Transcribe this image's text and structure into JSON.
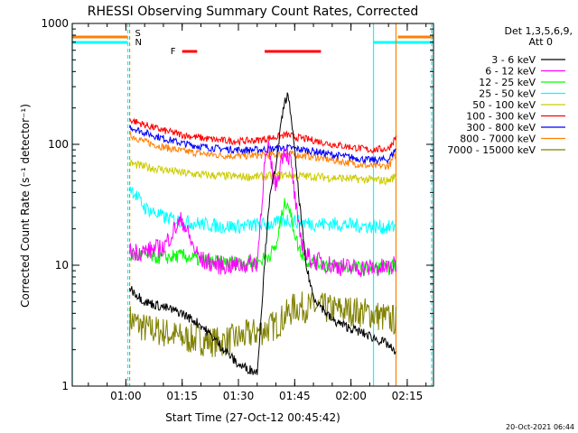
{
  "chart_data": {
    "type": "line",
    "title": "RHESSI Observing Summary Count Rates, Corrected",
    "xlabel": "Start Time (27-Oct-12 00:45:42)",
    "ylabel": "Corrected Count Rate (s⁻¹ detector⁻¹)",
    "xlim": [
      "00:45:42",
      "02:22:00"
    ],
    "ylim": [
      1,
      1000
    ],
    "yscale": "log",
    "x_ticks": [
      "01:00",
      "01:15",
      "01:30",
      "01:45",
      "02:00",
      "02:15"
    ],
    "y_ticks": [
      "1",
      "10",
      "100",
      "1000"
    ],
    "legend_header": [
      "Det 1,3,5,6,9,",
      "Att 0"
    ],
    "legend_position": "right",
    "footer": "20-Oct-2021 06:44",
    "flags": {
      "S": {
        "label": "S",
        "color": "#ff7f00",
        "intervals": [
          [
            "00:45:42",
            "01:00:30"
          ],
          [
            "02:12:30",
            "02:22:00"
          ]
        ]
      },
      "N": {
        "label": "N",
        "color": "#00ffff",
        "intervals": [
          [
            "00:45:42",
            "01:00:30"
          ],
          [
            "02:06:00",
            "02:22:00"
          ]
        ]
      },
      "F": {
        "label": "F",
        "color": "#ff0000",
        "intervals": [
          [
            "01:15:00",
            "01:19:00"
          ],
          [
            "01:37:00",
            "01:52:00"
          ]
        ]
      }
    },
    "vertical_lines": [
      {
        "time": "00:45:42",
        "color": "#00ffff",
        "style": "solid"
      },
      {
        "time": "01:00:30",
        "color": "#00ffff",
        "style": "dashed"
      },
      {
        "time": "01:01:00",
        "color": "#ff7f00",
        "style": "dashed"
      },
      {
        "time": "02:06:00",
        "color": "#00ffff",
        "style": "solid"
      },
      {
        "time": "02:12:00",
        "color": "#ff7f00",
        "style": "solid"
      },
      {
        "time": "02:21:30",
        "color": "#00ffff",
        "style": "dashed"
      }
    ],
    "series": [
      {
        "name": "3 - 6 keV",
        "color": "#000000",
        "x": [
          "01:01",
          "01:05",
          "01:10",
          "01:15",
          "01:20",
          "01:25",
          "01:30",
          "01:35",
          "01:38",
          "01:40",
          "01:42",
          "01:43",
          "01:44",
          "01:46",
          "01:48",
          "01:50",
          "01:55",
          "02:00",
          "02:05",
          "02:10",
          "02:12"
        ],
        "y": [
          6.5,
          5.0,
          4.5,
          4.0,
          3.2,
          2.2,
          1.5,
          1.3,
          30,
          70,
          200,
          260,
          180,
          40,
          10,
          5.5,
          3.5,
          3.0,
          2.6,
          2.2,
          1.8
        ]
      },
      {
        "name": "6 - 12 keV",
        "color": "#ff00ff",
        "x": [
          "01:01",
          "01:05",
          "01:10",
          "01:13",
          "01:15",
          "01:18",
          "01:20",
          "01:25",
          "01:30",
          "01:35",
          "01:37",
          "01:38",
          "01:39",
          "01:40",
          "01:42",
          "01:43",
          "01:44",
          "01:46",
          "01:48",
          "01:50",
          "01:55",
          "02:00",
          "02:05",
          "02:10",
          "02:12"
        ],
        "y": [
          13,
          13,
          14,
          20,
          24,
          14,
          11,
          10,
          10,
          10.5,
          70,
          90,
          60,
          45,
          90,
          85,
          70,
          20,
          12,
          11,
          10,
          9.5,
          9.5,
          9.5,
          10
        ]
      },
      {
        "name": "12 - 25 keV",
        "color": "#00ff00",
        "x": [
          "01:01",
          "01:05",
          "01:10",
          "01:15",
          "01:20",
          "01:25",
          "01:30",
          "01:35",
          "01:38",
          "01:40",
          "01:42",
          "01:43",
          "01:44",
          "01:46",
          "01:48",
          "01:50",
          "01:55",
          "02:00",
          "02:05",
          "02:10",
          "02:12"
        ],
        "y": [
          12,
          12,
          11.5,
          12,
          11,
          10.5,
          10.5,
          10.5,
          12,
          14,
          30,
          35,
          25,
          14,
          11,
          10.5,
          10,
          9.5,
          9.5,
          9.5,
          10
        ]
      },
      {
        "name": "25 - 50 keV",
        "color": "#00ffff",
        "x": [
          "01:01",
          "01:05",
          "01:10",
          "01:15",
          "01:20",
          "01:25",
          "01:30",
          "01:35",
          "01:40",
          "01:43",
          "01:45",
          "01:50",
          "01:55",
          "02:00",
          "02:05",
          "02:10",
          "02:12"
        ],
        "y": [
          45,
          30,
          25,
          23,
          22,
          21,
          21,
          21.5,
          22,
          24,
          23,
          22,
          22,
          21.5,
          21,
          20.5,
          21
        ]
      },
      {
        "name": "50 - 100 keV",
        "color": "#cccc00",
        "x": [
          "01:01",
          "01:05",
          "01:10",
          "01:15",
          "01:20",
          "01:25",
          "01:30",
          "01:35",
          "01:40",
          "01:43",
          "01:45",
          "01:50",
          "01:55",
          "02:00",
          "02:05",
          "02:10",
          "02:12"
        ],
        "y": [
          70,
          65,
          62,
          58,
          56,
          55,
          54,
          54,
          55,
          56,
          55,
          54,
          53,
          52,
          51,
          50,
          55
        ]
      },
      {
        "name": "100 - 300 keV",
        "color": "#ff0000",
        "x": [
          "01:01",
          "01:05",
          "01:10",
          "01:15",
          "01:20",
          "01:25",
          "01:30",
          "01:35",
          "01:40",
          "01:43",
          "01:45",
          "01:50",
          "01:55",
          "02:00",
          "02:05",
          "02:10",
          "02:12"
        ],
        "y": [
          160,
          145,
          130,
          120,
          113,
          108,
          106,
          108,
          115,
          120,
          115,
          108,
          100,
          95,
          90,
          92,
          115
        ]
      },
      {
        "name": "300 - 800 keV",
        "color": "#0000ff",
        "x": [
          "01:01",
          "01:05",
          "01:10",
          "01:15",
          "01:20",
          "01:25",
          "01:30",
          "01:35",
          "01:40",
          "01:43",
          "01:45",
          "01:50",
          "01:55",
          "02:00",
          "02:05",
          "02:10",
          "02:12"
        ],
        "y": [
          140,
          125,
          112,
          102,
          96,
          92,
          90,
          90,
          92,
          94,
          92,
          88,
          82,
          78,
          74,
          75,
          92
        ]
      },
      {
        "name": "800 - 7000 keV",
        "color": "#ff7f00",
        "x": [
          "01:01",
          "01:05",
          "01:10",
          "01:15",
          "01:20",
          "01:25",
          "01:30",
          "01:35",
          "01:40",
          "01:43",
          "01:45",
          "01:50",
          "01:55",
          "02:00",
          "02:05",
          "02:10",
          "02:12"
        ],
        "y": [
          120,
          105,
          95,
          88,
          84,
          81,
          80,
          81,
          82,
          84,
          82,
          79,
          74,
          70,
          66,
          66,
          82
        ]
      },
      {
        "name": "7000 - 15000 keV",
        "color": "#808000",
        "x": [
          "01:01",
          "01:05",
          "01:10",
          "01:15",
          "01:20",
          "01:25",
          "01:30",
          "01:35",
          "01:40",
          "01:45",
          "01:50",
          "01:55",
          "02:00",
          "02:05",
          "02:10",
          "02:12"
        ],
        "y": [
          3.6,
          3.0,
          2.8,
          2.5,
          2.4,
          2.3,
          2.5,
          2.8,
          3.2,
          4.5,
          4.5,
          4.3,
          4.2,
          4.0,
          3.6,
          3.5
        ]
      }
    ]
  }
}
